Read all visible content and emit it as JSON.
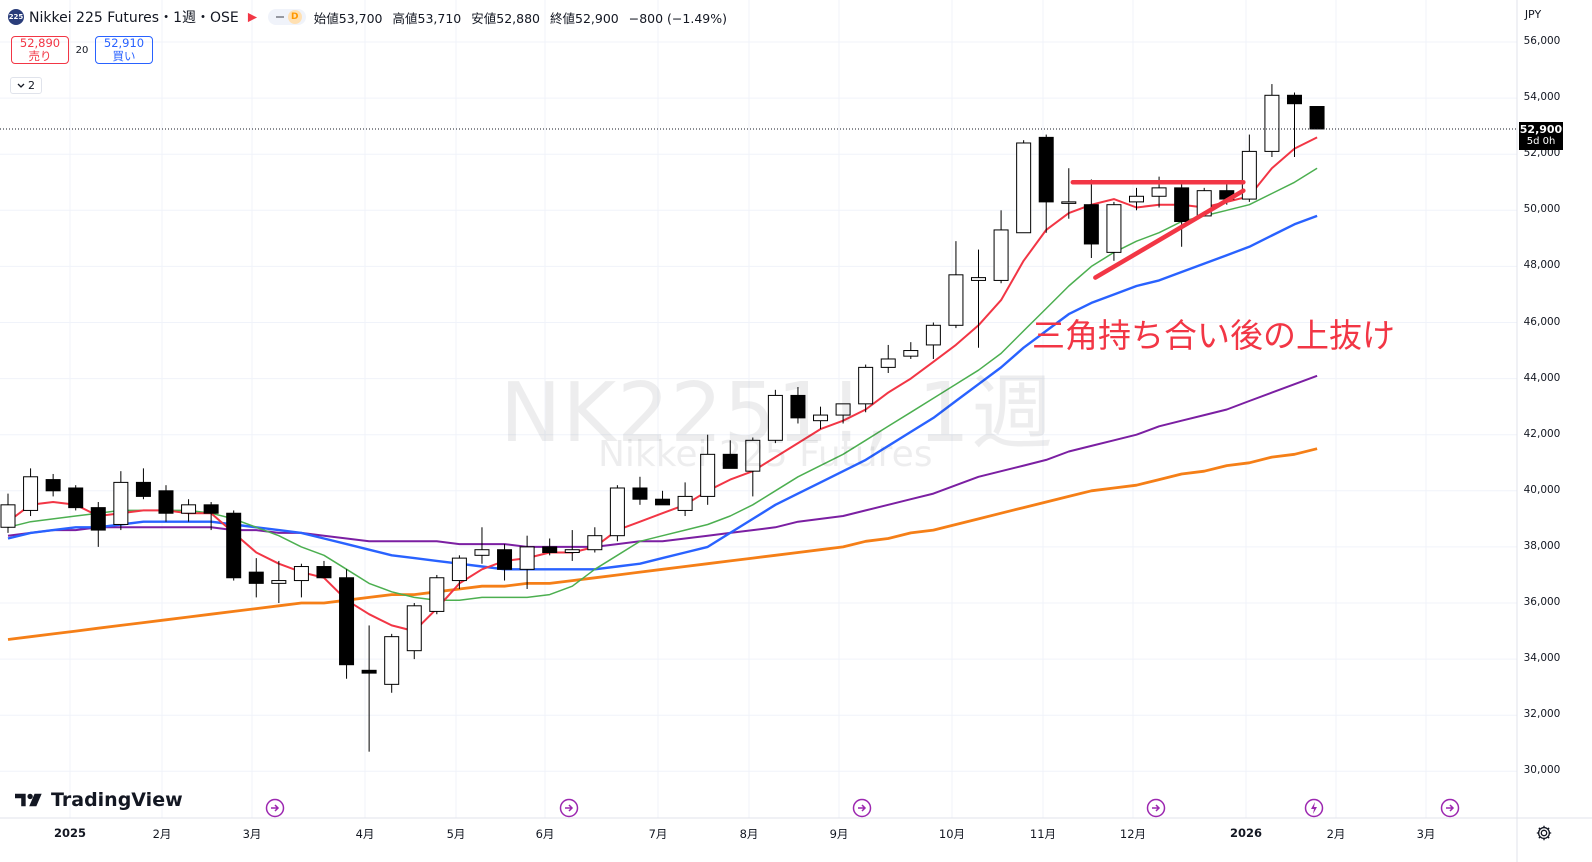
{
  "header": {
    "symbol_badge": "225",
    "title": "Nikkei 225 Futures・1週・OSE",
    "dash_icon": "minus",
    "d_badge": "D",
    "ohlc": [
      {
        "label": "始値",
        "value": "53,700"
      },
      {
        "label": "高値",
        "value": "53,710"
      },
      {
        "label": "安値",
        "value": "52,880"
      },
      {
        "label": "終値",
        "value": "52,900"
      }
    ],
    "change": "−800 (−1.49%)"
  },
  "trade": {
    "sell_price": "52,890",
    "sell_label": "売り",
    "spread": "20",
    "buy_price": "52,910",
    "buy_label": "買い"
  },
  "indicators_collapse": {
    "count": "2"
  },
  "watermark": {
    "ticker": "NK2251!, 1週",
    "name": "Nikkei 225 Futures"
  },
  "annotation": {
    "text": "三角持ち合い後の上抜け"
  },
  "price_scale": {
    "currency": "JPY",
    "last_price": "52,900",
    "countdown": "5d 0h",
    "labels": [
      "56,000",
      "54,000",
      "52,000",
      "50,000",
      "48,000",
      "46,000",
      "44,000",
      "42,000",
      "40,000",
      "38,000",
      "36,000",
      "34,000",
      "32,000",
      "30,000"
    ]
  },
  "time_axis": {
    "labels": [
      "2025",
      "2月",
      "3月",
      "4月",
      "5月",
      "6月",
      "7月",
      "8月",
      "9月",
      "10月",
      "11月",
      "12月",
      "2026",
      "2月",
      "3月"
    ]
  },
  "branding": {
    "logo_text": "TradingView"
  },
  "colors": {
    "up": "#ffffff",
    "down": "#000000",
    "ma_red": "#f23645",
    "ma_green": "#4caf50",
    "ma_blue": "#2962ff",
    "ma_purple": "#7b1fa2",
    "ma_orange": "#f57f17",
    "annotation": "#f23645"
  },
  "chart_data": {
    "type": "candlestick",
    "timeframe": "1W",
    "currency": "JPY",
    "ylim": [
      29000,
      56500
    ],
    "candles": [
      {
        "o": 38700,
        "h": 39900,
        "l": 38500,
        "c": 39500
      },
      {
        "o": 39300,
        "h": 40800,
        "l": 39100,
        "c": 40500
      },
      {
        "o": 40400,
        "h": 40600,
        "l": 39800,
        "c": 40000
      },
      {
        "o": 40100,
        "h": 40200,
        "l": 39300,
        "c": 39400
      },
      {
        "o": 39400,
        "h": 39600,
        "l": 38000,
        "c": 38600
      },
      {
        "o": 38800,
        "h": 40700,
        "l": 38600,
        "c": 40300
      },
      {
        "o": 40300,
        "h": 40800,
        "l": 39700,
        "c": 39800
      },
      {
        "o": 40000,
        "h": 40200,
        "l": 38900,
        "c": 39200
      },
      {
        "o": 39200,
        "h": 39700,
        "l": 38900,
        "c": 39500
      },
      {
        "o": 39500,
        "h": 39600,
        "l": 38600,
        "c": 39200
      },
      {
        "o": 39200,
        "h": 39300,
        "l": 36800,
        "c": 36900
      },
      {
        "o": 37100,
        "h": 37600,
        "l": 36200,
        "c": 36700
      },
      {
        "o": 36700,
        "h": 37500,
        "l": 36000,
        "c": 36800
      },
      {
        "o": 36800,
        "h": 37400,
        "l": 36200,
        "c": 37300
      },
      {
        "o": 37300,
        "h": 37500,
        "l": 36900,
        "c": 36900
      },
      {
        "o": 36900,
        "h": 37200,
        "l": 33300,
        "c": 33800
      },
      {
        "o": 33600,
        "h": 35200,
        "l": 30700,
        "c": 33500
      },
      {
        "o": 33100,
        "h": 34900,
        "l": 32800,
        "c": 34800
      },
      {
        "o": 34300,
        "h": 36000,
        "l": 34000,
        "c": 35900
      },
      {
        "o": 35700,
        "h": 37000,
        "l": 35600,
        "c": 36900
      },
      {
        "o": 36800,
        "h": 37700,
        "l": 36500,
        "c": 37600
      },
      {
        "o": 37700,
        "h": 38700,
        "l": 37400,
        "c": 37900
      },
      {
        "o": 37900,
        "h": 38100,
        "l": 36800,
        "c": 37200
      },
      {
        "o": 37200,
        "h": 38400,
        "l": 36500,
        "c": 38000
      },
      {
        "o": 38000,
        "h": 38300,
        "l": 37700,
        "c": 37800
      },
      {
        "o": 37800,
        "h": 38600,
        "l": 37500,
        "c": 37900
      },
      {
        "o": 37900,
        "h": 38700,
        "l": 37800,
        "c": 38400
      },
      {
        "o": 38400,
        "h": 40200,
        "l": 38200,
        "c": 40100
      },
      {
        "o": 40100,
        "h": 40500,
        "l": 39500,
        "c": 39700
      },
      {
        "o": 39700,
        "h": 40000,
        "l": 39500,
        "c": 39500
      },
      {
        "o": 39300,
        "h": 40300,
        "l": 39100,
        "c": 39800
      },
      {
        "o": 39800,
        "h": 42000,
        "l": 39500,
        "c": 41300
      },
      {
        "o": 41300,
        "h": 41800,
        "l": 40800,
        "c": 40800
      },
      {
        "o": 40700,
        "h": 41900,
        "l": 39800,
        "c": 41800
      },
      {
        "o": 41800,
        "h": 43600,
        "l": 41700,
        "c": 43400
      },
      {
        "o": 43400,
        "h": 43700,
        "l": 42400,
        "c": 42600
      },
      {
        "o": 42500,
        "h": 43000,
        "l": 42200,
        "c": 42700
      },
      {
        "o": 42700,
        "h": 43100,
        "l": 42400,
        "c": 43100
      },
      {
        "o": 43100,
        "h": 44500,
        "l": 42800,
        "c": 44400
      },
      {
        "o": 44400,
        "h": 45200,
        "l": 44200,
        "c": 44700
      },
      {
        "o": 44800,
        "h": 45300,
        "l": 44700,
        "c": 45000
      },
      {
        "o": 45200,
        "h": 46000,
        "l": 44700,
        "c": 45900
      },
      {
        "o": 45900,
        "h": 48900,
        "l": 45800,
        "c": 47700
      },
      {
        "o": 47500,
        "h": 48600,
        "l": 45100,
        "c": 47600
      },
      {
        "o": 47500,
        "h": 50000,
        "l": 47400,
        "c": 49300
      },
      {
        "o": 49200,
        "h": 52500,
        "l": 49200,
        "c": 52400
      },
      {
        "o": 52600,
        "h": 52700,
        "l": 49200,
        "c": 50300
      },
      {
        "o": 50300,
        "h": 51500,
        "l": 49700,
        "c": 50300
      },
      {
        "o": 50200,
        "h": 51100,
        "l": 48300,
        "c": 48800
      },
      {
        "o": 48500,
        "h": 50300,
        "l": 48200,
        "c": 50200
      },
      {
        "o": 50300,
        "h": 50800,
        "l": 50000,
        "c": 50500
      },
      {
        "o": 50500,
        "h": 51200,
        "l": 50100,
        "c": 50800
      },
      {
        "o": 50800,
        "h": 51000,
        "l": 48700,
        "c": 49600
      },
      {
        "o": 49800,
        "h": 50800,
        "l": 49800,
        "c": 50700
      },
      {
        "o": 50700,
        "h": 51000,
        "l": 50200,
        "c": 50400
      },
      {
        "o": 50400,
        "h": 52700,
        "l": 50300,
        "c": 52100
      },
      {
        "o": 52100,
        "h": 54500,
        "l": 51900,
        "c": 54100
      },
      {
        "o": 54100,
        "h": 54200,
        "l": 51900,
        "c": 53800
      },
      {
        "o": 53700,
        "h": 53710,
        "l": 52880,
        "c": 52900
      }
    ],
    "series": [
      {
        "color": "#f23645",
        "values": [
          38900,
          39500,
          39600,
          39500,
          39100,
          39200,
          39300,
          39300,
          39200,
          39200,
          38500,
          37800,
          37400,
          37100,
          36900,
          36100,
          35600,
          35200,
          35000,
          35800,
          36700,
          37200,
          37500,
          37600,
          37800,
          37800,
          38000,
          38600,
          38900,
          39200,
          39500,
          40000,
          40400,
          40700,
          41200,
          41700,
          42200,
          42500,
          42900,
          43500,
          44000,
          44600,
          45200,
          45900,
          46800,
          48200,
          49300,
          49900,
          50200,
          50400,
          50100,
          50200,
          50200,
          50100,
          50300,
          50500,
          51500,
          52200,
          52600
        ]
      },
      {
        "color": "#4caf50",
        "values": [
          38700,
          38900,
          39000,
          39100,
          39200,
          39300,
          39300,
          39300,
          39300,
          39200,
          39000,
          38700,
          38400,
          38000,
          37700,
          37200,
          36700,
          36400,
          36200,
          36100,
          36100,
          36200,
          36200,
          36200,
          36300,
          36600,
          37200,
          37700,
          38200,
          38400,
          38600,
          38800,
          39100,
          39500,
          40000,
          40500,
          40900,
          41300,
          41800,
          42300,
          42800,
          43300,
          43800,
          44300,
          44900,
          45700,
          46500,
          47300,
          48000,
          48500,
          48900,
          49200,
          49600,
          49800,
          50000,
          50200,
          50600,
          51000,
          51500
        ]
      },
      {
        "color": "#2962ff",
        "values": [
          38300,
          38500,
          38600,
          38700,
          38700,
          38800,
          38900,
          38900,
          38900,
          38900,
          38800,
          38700,
          38600,
          38500,
          38300,
          38100,
          37900,
          37700,
          37600,
          37500,
          37400,
          37300,
          37200,
          37200,
          37200,
          37200,
          37200,
          37300,
          37400,
          37600,
          37800,
          38000,
          38500,
          39000,
          39500,
          39900,
          40300,
          40700,
          41100,
          41600,
          42100,
          42600,
          43200,
          43800,
          44400,
          45100,
          45700,
          46300,
          46700,
          47000,
          47300,
          47500,
          47800,
          48100,
          48400,
          48700,
          49100,
          49500,
          49800
        ]
      },
      {
        "color": "#7b1fa2",
        "values": [
          38400,
          38500,
          38600,
          38600,
          38700,
          38700,
          38700,
          38700,
          38700,
          38700,
          38600,
          38600,
          38500,
          38500,
          38400,
          38300,
          38200,
          38200,
          38200,
          38200,
          38100,
          38100,
          38100,
          38000,
          38000,
          38000,
          38000,
          38100,
          38200,
          38200,
          38300,
          38400,
          38500,
          38600,
          38700,
          38900,
          39000,
          39100,
          39300,
          39500,
          39700,
          39900,
          40200,
          40500,
          40700,
          40900,
          41100,
          41400,
          41600,
          41800,
          42000,
          42300,
          42500,
          42700,
          42900,
          43200,
          43500,
          43800,
          44100
        ]
      },
      {
        "color": "#f57f17",
        "values": [
          34700,
          34800,
          34900,
          35000,
          35100,
          35200,
          35300,
          35400,
          35500,
          35600,
          35700,
          35800,
          35900,
          36000,
          36000,
          36100,
          36200,
          36300,
          36300,
          36400,
          36500,
          36600,
          36600,
          36700,
          36700,
          36800,
          36900,
          37000,
          37100,
          37200,
          37300,
          37400,
          37500,
          37600,
          37700,
          37800,
          37900,
          38000,
          38200,
          38300,
          38500,
          38600,
          38800,
          39000,
          39200,
          39400,
          39600,
          39800,
          40000,
          40100,
          40200,
          40400,
          40600,
          40700,
          40900,
          41000,
          41200,
          41300,
          41500
        ]
      }
    ],
    "trendlines": [
      {
        "color": "#f23645",
        "p1": {
          "x": 47,
          "y": 51000
        },
        "p2": {
          "x": 55,
          "y": 51000
        }
      },
      {
        "color": "#f23645",
        "p1": {
          "x": 48,
          "y": 47600
        },
        "p2": {
          "x": 55,
          "y": 50700
        }
      }
    ],
    "last_price_line": 52900
  }
}
